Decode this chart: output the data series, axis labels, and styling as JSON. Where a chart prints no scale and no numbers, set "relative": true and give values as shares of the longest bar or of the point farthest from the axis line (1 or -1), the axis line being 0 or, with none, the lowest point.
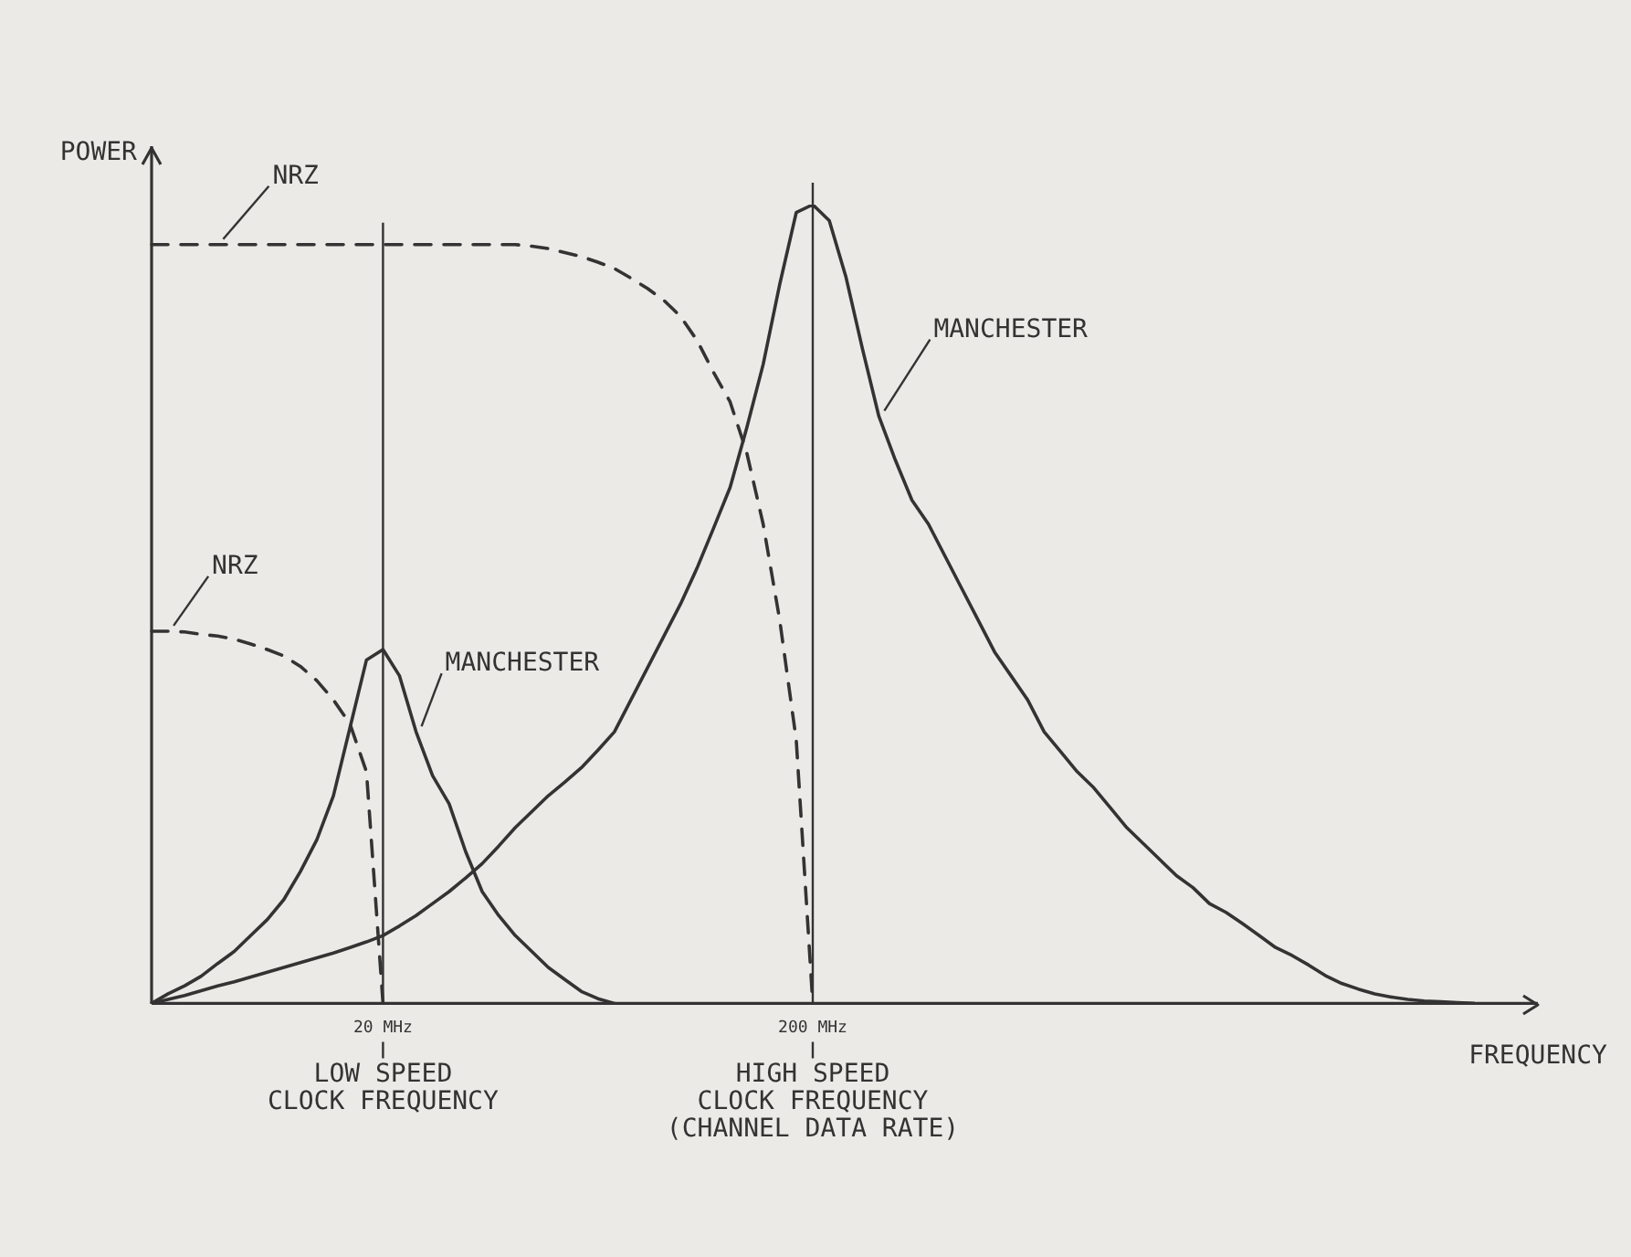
{
  "chart_data": {
    "type": "line",
    "relative": true,
    "xlabel": "FREQUENCY",
    "ylabel": "POWER",
    "legend": false,
    "grid": false,
    "marker": "none",
    "categories": [
      null,
      null,
      null,
      null,
      null,
      null,
      null,
      null,
      null,
      null,
      null,
      null,
      null,
      null,
      "20 MHz",
      null,
      null,
      null,
      null,
      null,
      null,
      null,
      null,
      null,
      null,
      null,
      null,
      null,
      null,
      null,
      null,
      null,
      null,
      null,
      null,
      null,
      null,
      null,
      null,
      null,
      "200 MHz",
      null,
      null,
      null,
      null,
      null,
      null,
      null,
      null,
      null,
      null,
      null,
      null,
      null,
      null,
      null,
      null,
      null,
      null,
      null,
      null,
      null,
      null,
      null,
      null,
      null,
      null,
      null,
      null,
      null,
      null,
      null,
      null,
      null,
      null,
      null,
      null,
      null,
      null,
      null,
      null
    ],
    "series": [
      {
        "name": "NRZ",
        "color": "#333333",
        "line_style": "dashed",
        "values": [
          0.466,
          0.466,
          0.465,
          0.462,
          0.46,
          0.456,
          0.45,
          0.443,
          0.435,
          0.422,
          0.404,
          0.38,
          0.35,
          0.29,
          0,
          null,
          null,
          null,
          null,
          null,
          null,
          null,
          null,
          null,
          null,
          null,
          null,
          null,
          null,
          null,
          null,
          null,
          null,
          null,
          null,
          null,
          null,
          null,
          null,
          null,
          null,
          null,
          null,
          null,
          null,
          null,
          null,
          null,
          null,
          null,
          null,
          null,
          null,
          null,
          null,
          null,
          null,
          null,
          null,
          null,
          null,
          null,
          null,
          null,
          null,
          null,
          null,
          null,
          null,
          null,
          null,
          null,
          null,
          null,
          null,
          null,
          null,
          null,
          null,
          null,
          null
        ]
      },
      {
        "name": "MANCHESTER",
        "color": "#333333",
        "line_style": "solid",
        "values": [
          0,
          0.012,
          0.022,
          0.034,
          0.05,
          0.065,
          0.085,
          0.105,
          0.13,
          0.165,
          0.205,
          0.26,
          0.345,
          0.43,
          0.443,
          0.41,
          0.34,
          0.285,
          0.25,
          0.19,
          0.14,
          0.11,
          0.085,
          0.065,
          0.045,
          0.03,
          0.015,
          0.006,
          0,
          null,
          null,
          null,
          null,
          null,
          null,
          null,
          null,
          null,
          null,
          null,
          null,
          null,
          null,
          null,
          null,
          null,
          null,
          null,
          null,
          null,
          null,
          null,
          null,
          null,
          null,
          null,
          null,
          null,
          null,
          null,
          null,
          null,
          null,
          null,
          null,
          null,
          null,
          null,
          null,
          null,
          null,
          null,
          null,
          null,
          null,
          null,
          null,
          null,
          null,
          null,
          null
        ]
      },
      {
        "name": "NRZ",
        "color": "#333333",
        "line_style": "dashed",
        "values": [
          0.95,
          0.95,
          0.95,
          0.95,
          0.95,
          0.95,
          0.95,
          0.95,
          0.95,
          0.95,
          0.95,
          0.95,
          0.95,
          0.95,
          0.95,
          0.95,
          0.95,
          0.95,
          0.95,
          0.95,
          0.95,
          0.95,
          0.95,
          0.948,
          0.945,
          0.94,
          0.935,
          0.928,
          0.92,
          0.908,
          0.895,
          0.88,
          0.86,
          0.83,
          0.79,
          0.753,
          0.69,
          0.6,
          0.48,
          0.33,
          0,
          null,
          null,
          null,
          null,
          null,
          null,
          null,
          null,
          null,
          null,
          null,
          null,
          null,
          null,
          null,
          null,
          null,
          null,
          null,
          null,
          null,
          null,
          null,
          null,
          null,
          null,
          null,
          null,
          null,
          null,
          null,
          null,
          null,
          null,
          null,
          null,
          null,
          null,
          null,
          null
        ]
      },
      {
        "name": "MANCHESTER",
        "color": "#333333",
        "line_style": "solid",
        "values": [
          0,
          0.005,
          0.01,
          0.016,
          0.022,
          0.027,
          0.033,
          0.039,
          0.045,
          0.051,
          0.057,
          0.063,
          0.07,
          0.077,
          0.085,
          0.097,
          0.11,
          0.125,
          0.14,
          0.157,
          0.175,
          0.197,
          0.22,
          0.24,
          0.26,
          0.277,
          0.295,
          0.317,
          0.34,
          0.38,
          0.42,
          0.46,
          0.5,
          0.545,
          0.595,
          0.646,
          0.72,
          0.8,
          0.9,
          0.99,
          1,
          0.98,
          0.91,
          0.82,
          0.735,
          0.68,
          0.63,
          0.6,
          0.56,
          0.52,
          0.48,
          0.44,
          0.41,
          0.38,
          0.34,
          0.315,
          0.29,
          0.27,
          0.245,
          0.22,
          0.2,
          0.18,
          0.16,
          0.145,
          0.125,
          0.114,
          0.1,
          0.085,
          0.07,
          0.06,
          0.048,
          0.035,
          0.025,
          0.018,
          0.012,
          0.008,
          0.005,
          0.003,
          0.002,
          0.001,
          0
        ]
      }
    ],
    "ref_lines": [
      {
        "axis": "x",
        "value": "20 MHz"
      },
      {
        "axis": "x",
        "value": "200 MHz"
      }
    ],
    "annotations": [
      "LOW SPEED\nCLOCK FREQUENCY",
      "HIGH SPEED\nCLOCK FREQUENCY\n(CHANNEL DATA RATE)"
    ]
  }
}
